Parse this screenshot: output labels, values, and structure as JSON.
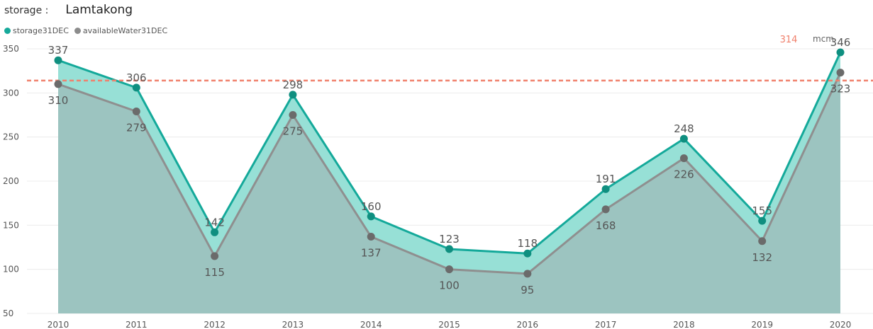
{
  "slicer": {
    "label": "storage :",
    "value": "Lamtakong"
  },
  "legend": [
    {
      "name": "storage31DEC",
      "color": "#16a99a"
    },
    {
      "name": "availableWater31DEC",
      "color": "#8c8c8c"
    }
  ],
  "reference": {
    "value": 314,
    "value_label": "314",
    "unit": "mcm",
    "color": "#f0806c"
  },
  "chart_data": {
    "type": "area",
    "categories": [
      "2010",
      "2011",
      "2012",
      "2013",
      "2014",
      "2015",
      "2016",
      "2017",
      "2018",
      "2019",
      "2020"
    ],
    "series": [
      {
        "name": "storage31DEC",
        "values": [
          337,
          306,
          142,
          298,
          160,
          123,
          118,
          191,
          248,
          155,
          346
        ],
        "labels": [
          "337",
          "306",
          "142",
          "298",
          "160",
          "123",
          "118",
          "191",
          "248",
          "155",
          "346"
        ],
        "color": "#16a99a",
        "fill": "#97e0d6"
      },
      {
        "name": "availableWater31DEC",
        "values": [
          310,
          279,
          115,
          275,
          137,
          100,
          95,
          168,
          226,
          132,
          323
        ],
        "labels": [
          "310",
          "279",
          "115",
          "275",
          "137",
          "100",
          "95",
          "168",
          "226",
          "132",
          "323"
        ],
        "color": "#929292",
        "fill": "#9cc4c0"
      }
    ],
    "ylim": [
      50,
      350
    ],
    "yticks": [
      "350",
      "300",
      "250",
      "200",
      "150",
      "100",
      "50"
    ],
    "grid": true,
    "legend_position": "top-left"
  }
}
